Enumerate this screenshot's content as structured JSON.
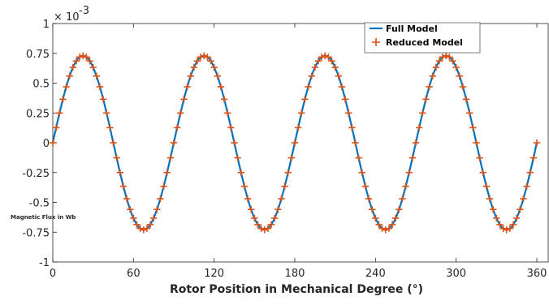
{
  "chart_data": {
    "type": "line",
    "xlabel": "Rotor Position in Mechanical Degree (°)",
    "ylabel": "Magnetic Flux in Wb",
    "y_multiplier": "× 10",
    "y_exponent": "-3",
    "xlim": [
      0,
      360
    ],
    "ylim": [
      -1,
      1
    ],
    "x_ticks": [
      "0",
      "60",
      "120",
      "180",
      "240",
      "300",
      "360"
    ],
    "y_ticks": [
      "1",
      "0.75",
      "0.5",
      "0.25",
      "0",
      "-0.25",
      "-0.5",
      "-0.75",
      "-1"
    ],
    "grid": false,
    "legend_position": "top-right",
    "series": [
      {
        "name": "Full Model",
        "style": "solid-line",
        "color": "#0072BD",
        "amplitude": 0.73,
        "periods_over_range": 4
      },
      {
        "name": "Reduced Model",
        "style": "plus-markers",
        "color": "#D95319",
        "amplitude": 0.73,
        "periods_over_range": 4
      }
    ]
  }
}
